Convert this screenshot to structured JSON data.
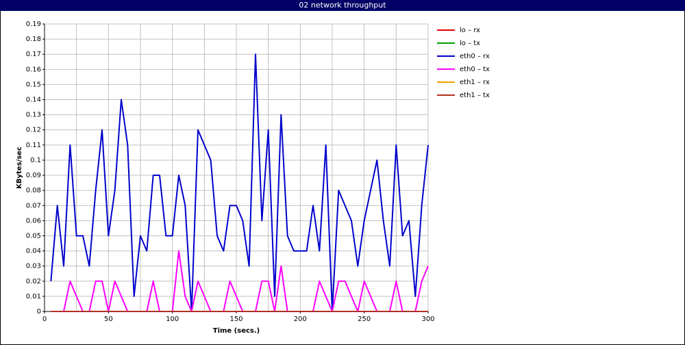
{
  "chart_data": {
    "type": "line",
    "title": "02 network throughput",
    "x_label": "Time (secs.)",
    "y_label": "KBytes/sec",
    "x": [
      5,
      10,
      15,
      20,
      25,
      30,
      35,
      40,
      45,
      50,
      55,
      60,
      65,
      70,
      75,
      80,
      85,
      90,
      95,
      100,
      105,
      110,
      115,
      120,
      125,
      130,
      135,
      140,
      145,
      150,
      155,
      160,
      165,
      170,
      175,
      180,
      185,
      190,
      195,
      200,
      205,
      210,
      215,
      220,
      225,
      230,
      235,
      240,
      245,
      250,
      255,
      260,
      265,
      270,
      275,
      280,
      285,
      290,
      295,
      300
    ],
    "series": [
      {
        "name": "lo – rx",
        "color": "#e00000",
        "values": [
          0,
          0,
          0,
          0,
          0,
          0,
          0,
          0,
          0,
          0,
          0,
          0,
          0,
          0,
          0,
          0,
          0,
          0,
          0,
          0,
          0,
          0,
          0,
          0,
          0,
          0,
          0,
          0,
          0,
          0,
          0,
          0,
          0,
          0,
          0,
          0,
          0,
          0,
          0,
          0,
          0,
          0,
          0,
          0,
          0,
          0,
          0,
          0,
          0,
          0,
          0,
          0,
          0,
          0,
          0,
          0,
          0,
          0,
          0,
          0
        ]
      },
      {
        "name": "lo – tx",
        "color": "#00a000",
        "values": [
          0,
          0,
          0,
          0,
          0,
          0,
          0,
          0,
          0,
          0,
          0,
          0,
          0,
          0,
          0,
          0,
          0,
          0,
          0,
          0,
          0,
          0,
          0,
          0,
          0,
          0,
          0,
          0,
          0,
          0,
          0,
          0,
          0,
          0,
          0,
          0,
          0,
          0,
          0,
          0,
          0,
          0,
          0,
          0,
          0,
          0,
          0,
          0,
          0,
          0,
          0,
          0,
          0,
          0,
          0,
          0,
          0,
          0,
          0,
          0
        ]
      },
      {
        "name": "eth0 – rx",
        "color": "#0000cc",
        "values": [
          0.02,
          0.07,
          0.03,
          0.11,
          0.05,
          0.05,
          0.03,
          0.08,
          0.12,
          0.05,
          0.08,
          0.14,
          0.11,
          0.01,
          0.05,
          0.04,
          0.09,
          0.09,
          0.05,
          0.05,
          0.09,
          0.07,
          0,
          0.12,
          0.11,
          0.1,
          0.05,
          0.04,
          0.07,
          0.07,
          0.06,
          0.03,
          0.17,
          0.06,
          0.12,
          0.01,
          0.13,
          0.05,
          0.04,
          0.04,
          0.04,
          0.07,
          0.04,
          0.11,
          0,
          0.08,
          0.07,
          0.06,
          0.03,
          0.06,
          0.08,
          0.1,
          0.06,
          0.03,
          0.11,
          0.05,
          0.06,
          0.01,
          0.07,
          0.11
        ]
      },
      {
        "name": "eth0 – tx",
        "color": "#ff00ff",
        "values": [
          0,
          0,
          0,
          0.02,
          0.01,
          0,
          0,
          0.02,
          0.02,
          0,
          0.02,
          0.01,
          0,
          0,
          0,
          0,
          0.02,
          0,
          0,
          0,
          0.04,
          0.01,
          0,
          0.02,
          0.01,
          0,
          0,
          0,
          0.02,
          0.01,
          0,
          0,
          0,
          0.02,
          0.02,
          0,
          0.03,
          0,
          0,
          0,
          0,
          0,
          0.02,
          0.01,
          0,
          0.02,
          0.02,
          0.01,
          0,
          0.02,
          0.01,
          0,
          0,
          0,
          0.02,
          0,
          0,
          0,
          0.02,
          0.03
        ]
      },
      {
        "name": "eth1 – rx",
        "color": "#f0a000",
        "values": [
          0,
          0,
          0,
          0,
          0,
          0,
          0,
          0,
          0,
          0,
          0,
          0,
          0,
          0,
          0,
          0,
          0,
          0,
          0,
          0,
          0,
          0,
          0,
          0,
          0,
          0,
          0,
          0,
          0,
          0,
          0,
          0,
          0,
          0,
          0,
          0,
          0,
          0,
          0,
          0,
          0,
          0,
          0,
          0,
          0,
          0,
          0,
          0,
          0,
          0,
          0,
          0,
          0,
          0,
          0,
          0,
          0,
          0,
          0,
          0
        ]
      },
      {
        "name": "eth1 – tx",
        "color": "#b03020",
        "values": [
          0,
          0,
          0,
          0,
          0,
          0,
          0,
          0,
          0,
          0,
          0,
          0,
          0,
          0,
          0,
          0,
          0,
          0,
          0,
          0,
          0,
          0,
          0,
          0,
          0,
          0,
          0,
          0,
          0,
          0,
          0,
          0,
          0,
          0,
          0,
          0,
          0,
          0,
          0,
          0,
          0,
          0,
          0,
          0,
          0,
          0,
          0,
          0,
          0,
          0,
          0,
          0,
          0,
          0,
          0,
          0,
          0,
          0,
          0,
          0
        ]
      }
    ],
    "xlim": [
      0,
      300
    ],
    "xticks": [
      0,
      50,
      100,
      150,
      200,
      250,
      300
    ],
    "x_grid": [
      0,
      25,
      50,
      75,
      100,
      125,
      150,
      175,
      200,
      225,
      250,
      275,
      300
    ],
    "ylim": [
      0,
      0.19
    ],
    "yticks": [
      0,
      0.01,
      0.02,
      0.03,
      0.04,
      0.05,
      0.06,
      0.07,
      0.08,
      0.09,
      0.1,
      0.11,
      0.12,
      0.13,
      0.14,
      0.15,
      0.16,
      0.17,
      0.18,
      0.19
    ],
    "grid": true,
    "legend": "right"
  }
}
